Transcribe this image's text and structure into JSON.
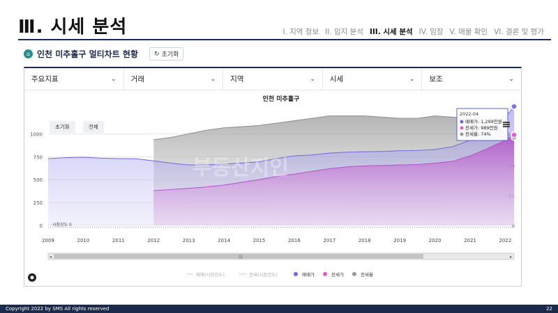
{
  "slide": {
    "title": "Ⅲ. 시세 분석",
    "nav": [
      "I. 지역 정보",
      "II. 입지 분석",
      "III. 시세 분석",
      "IV. 임장",
      "V. 매물 확인",
      "VI. 결론 및 평가"
    ],
    "active_nav": 2
  },
  "section": {
    "title": "인천 미추홀구 멀티차트 현황",
    "reset_label": "초기화"
  },
  "filters": [
    "주요지표",
    "거래",
    "지역",
    "시세",
    "보조"
  ],
  "chart_controls": {
    "reset": "초기화",
    "all": "전체"
  },
  "chart_data": {
    "type": "area",
    "title": "인천 미추홀구",
    "x": [
      2009,
      2009.5,
      2010,
      2010.5,
      2011,
      2011.5,
      2012,
      2012.5,
      2013,
      2013.5,
      2014,
      2014.5,
      2015,
      2015.5,
      2016,
      2016.5,
      2017,
      2017.5,
      2018,
      2018.5,
      2019,
      2019.5,
      2020,
      2020.5,
      2021,
      2021.5,
      2022,
      2022.25
    ],
    "xticks": [
      "2009",
      "2010",
      "2011",
      "2012",
      "2013",
      "2014",
      "2015",
      "2016",
      "2017",
      "2018",
      "2019",
      "2020",
      "2021",
      "2022"
    ],
    "yticks_left": [
      "0",
      "250",
      "500",
      "750",
      "1000"
    ],
    "yticks_right": [
      "0",
      "25",
      "50",
      "75"
    ],
    "ylim_left": [
      0,
      1300
    ],
    "ylim_right": [
      0,
      100
    ],
    "series": [
      {
        "name": "매매가",
        "color": "#7b72e6",
        "values": [
          730,
          740,
          745,
          735,
          730,
          728,
          705,
          680,
          660,
          662,
          670,
          680,
          695,
          730,
          760,
          770,
          790,
          800,
          805,
          808,
          815,
          818,
          830,
          860,
          930,
          1050,
          1180,
          1299
        ]
      },
      {
        "name": "전세가",
        "color": "#e05fc4",
        "values": [
          null,
          null,
          null,
          null,
          null,
          null,
          380,
          392,
          405,
          420,
          440,
          470,
          500,
          535,
          560,
          590,
          620,
          640,
          650,
          655,
          660,
          665,
          680,
          700,
          760,
          840,
          930,
          989
        ]
      },
      {
        "name": "전세율",
        "color": "#9a9a9a",
        "axis": "right",
        "values": [
          null,
          null,
          null,
          null,
          null,
          null,
          72,
          74,
          77,
          80,
          82,
          83,
          84,
          86,
          88,
          90,
          92,
          92,
          92,
          91,
          90,
          90,
          92,
          91,
          90,
          85,
          80,
          74
        ]
      }
    ],
    "zero_label": "시장강도 0",
    "legend": [
      {
        "name": "매매(시장강도)",
        "style": "dashed"
      },
      {
        "name": "전세(시장강도)",
        "style": "dashed"
      },
      {
        "name": "매매가",
        "style": "dot"
      },
      {
        "name": "전세가",
        "style": "dot"
      },
      {
        "name": "전세율",
        "style": "dot"
      }
    ],
    "tooltip": {
      "date": "2022-04",
      "rows": [
        "매매가: 1,299만원",
        "전세가: 989만원",
        "전세율: 74%"
      ]
    },
    "watermark": "부동산지인"
  },
  "footer": {
    "copyright": "Copyright 2022 by SMS All rights reserved",
    "page": "22"
  }
}
